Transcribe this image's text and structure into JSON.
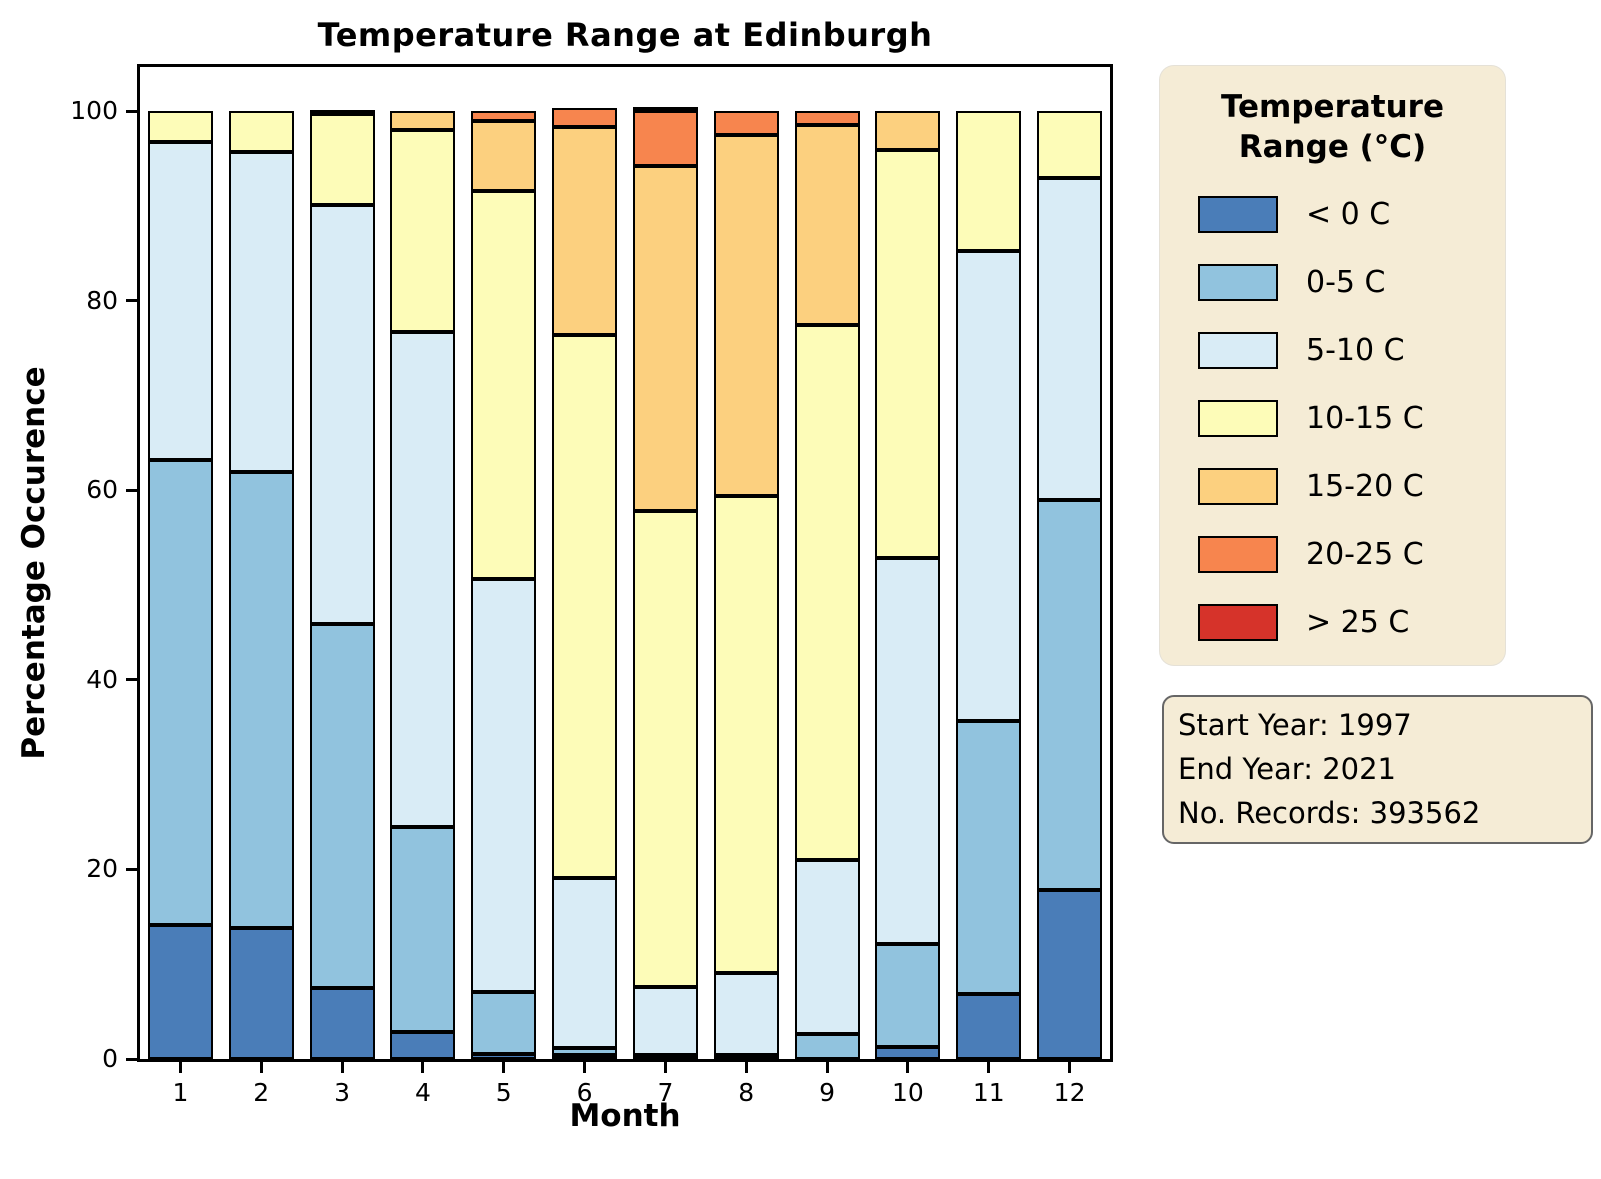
{
  "title": "Temperature Range at Edinburgh",
  "axis": {
    "xlabel": "Month",
    "ylabel": "Percentage Occurence",
    "x_tick_labels": [
      "1",
      "2",
      "3",
      "4",
      "5",
      "6",
      "7",
      "8",
      "9",
      "10",
      "11",
      "12"
    ],
    "y_tick_labels": [
      "0",
      "20",
      "40",
      "60",
      "80",
      "100"
    ],
    "y_tick_values": [
      0,
      20,
      40,
      60,
      80,
      100
    ]
  },
  "legend": {
    "title_lines": [
      "Temperature",
      "Range (°C)"
    ],
    "background": "#f5ecd6",
    "entries": [
      {
        "label": "< 0 C",
        "color": "#4a7db8"
      },
      {
        "label": "0-5 C",
        "color": "#91c3de"
      },
      {
        "label": "5-10 C",
        "color": "#d9ecf6"
      },
      {
        "label": "10-15 C",
        "color": "#fdfcb8"
      },
      {
        "label": "15-20 C",
        "color": "#fcd07f"
      },
      {
        "label": "20-25 C",
        "color": "#f7854e"
      },
      {
        "label": "> 25 C",
        "color": "#d6332a"
      }
    ]
  },
  "info_box": {
    "lines": [
      "Start Year: 1997",
      "End Year: 2021",
      "No. Records: 393562"
    ],
    "background": "#f5ecd6",
    "border_color": "#666666"
  },
  "chart_data": {
    "type": "bar",
    "stacked": true,
    "title": "Temperature Range at Edinburgh",
    "xlabel": "Month",
    "ylabel": "Percentage Occurence",
    "ylim": [
      0,
      100
    ],
    "grid": false,
    "legend_position": "outside-right",
    "categories": [
      1,
      2,
      3,
      4,
      5,
      6,
      7,
      8,
      9,
      10,
      11,
      12
    ],
    "series": [
      {
        "name": "< 0 C",
        "color": "#4a7db8",
        "values": [
          14.1,
          13.8,
          7.5,
          2.8,
          0.5,
          0.1,
          0.0,
          0.0,
          0.0,
          1.3,
          6.9,
          17.8
        ]
      },
      {
        "name": "0-5 C",
        "color": "#91c3de",
        "values": [
          49.1,
          48.1,
          38.4,
          21.7,
          6.6,
          0.7,
          0.2,
          0.4,
          2.6,
          10.8,
          28.8,
          41.2
        ]
      },
      {
        "name": "5-10 C",
        "color": "#d9ecf6",
        "values": [
          33.5,
          33.8,
          44.2,
          52.2,
          43.5,
          18.0,
          7.2,
          8.7,
          18.4,
          40.8,
          49.5,
          33.9
        ]
      },
      {
        "name": "10-15 C",
        "color": "#fdfcb8",
        "values": [
          3.3,
          4.3,
          9.6,
          21.3,
          41.0,
          57.3,
          50.2,
          50.3,
          56.4,
          43.0,
          14.8,
          7.1
        ]
      },
      {
        "name": "15-20 C",
        "color": "#fcd07f",
        "values": [
          0.0,
          0.0,
          0.3,
          2.0,
          7.4,
          21.9,
          36.4,
          38.1,
          21.1,
          4.1,
          0.0,
          0.0
        ]
      },
      {
        "name": "20-25 C",
        "color": "#f7854e",
        "values": [
          0.0,
          0.0,
          0.0,
          0.0,
          1.0,
          2.0,
          5.8,
          2.5,
          1.5,
          0.0,
          0.0,
          0.0
        ]
      },
      {
        "name": "> 25 C",
        "color": "#d6332a",
        "values": [
          0.0,
          0.0,
          0.0,
          0.0,
          0.0,
          0.0,
          0.2,
          0.0,
          0.0,
          0.0,
          0.0,
          0.0
        ]
      }
    ]
  }
}
